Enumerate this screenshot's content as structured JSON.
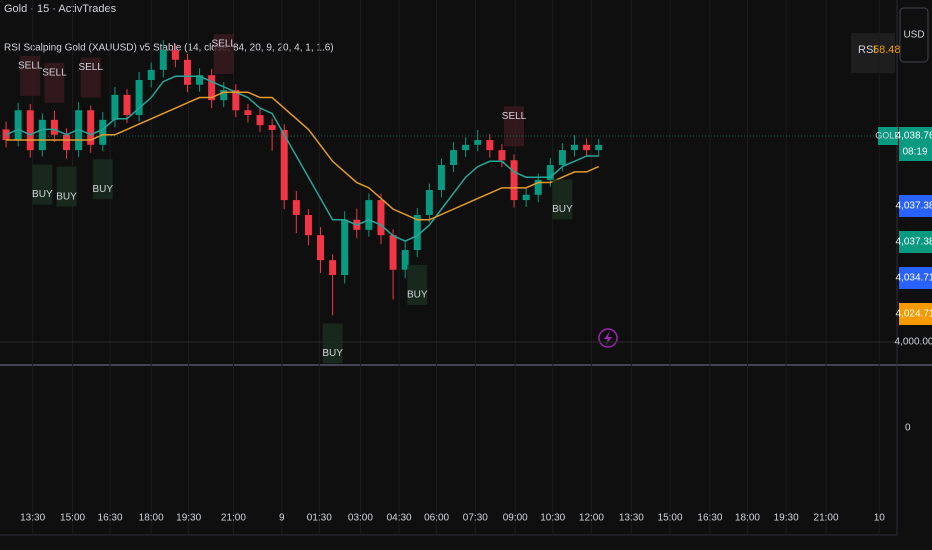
{
  "chart_data": {
    "type": "candlestick",
    "title": "Gold · 15 · ActivTrades",
    "subtitle": "RSI Scalping Gold (XAUUSD) v5 Stable (14, close, 84, 20, 9, 20, 4, 1, 1.6)",
    "up_color": "#089981",
    "down_color": "#f23645",
    "x": [
      0,
      1,
      2,
      3,
      4,
      5,
      6,
      7,
      8,
      9,
      10,
      11,
      12,
      13,
      14,
      15,
      16,
      17,
      18,
      19,
      20,
      21,
      22,
      23,
      24,
      25,
      26,
      27,
      28,
      29,
      30,
      31,
      32,
      33,
      34,
      35,
      36,
      37,
      38,
      39,
      40,
      41,
      42,
      43,
      44,
      45,
      46,
      47,
      48,
      49
    ],
    "open": [
      4040.0,
      4038.0,
      4043.6,
      4036.1,
      4041.8,
      4039.0,
      4036.1,
      4043.6,
      4037.1,
      4041.8,
      4046.5,
      4042.7,
      4049.3,
      4051.2,
      4054.9,
      4053.1,
      4048.4,
      4050.2,
      4045.5,
      4047.4,
      4043.6,
      4042.7,
      4040.8,
      4039.9,
      4026.7,
      4023.9,
      4020.1,
      4015.4,
      4012.6,
      4023.0,
      4021.1,
      4026.7,
      4020.1,
      4013.6,
      4017.3,
      4023.9,
      4028.6,
      4033.3,
      4036.1,
      4037.1,
      4038.0,
      4036.1,
      4034.2,
      4026.7,
      4027.7,
      4030.5,
      4033.3,
      4036.1,
      4037.1,
      4036.1
    ],
    "high": [
      4041.5,
      4045.0,
      4044.8,
      4043.0,
      4043.5,
      4040.2,
      4045.1,
      4044.5,
      4043.3,
      4048.0,
      4047.6,
      4050.8,
      4052.6,
      4056.8,
      4056.0,
      4054.2,
      4051.5,
      4051.4,
      4048.9,
      4048.5,
      4044.8,
      4043.9,
      4042.0,
      4041.0,
      4028.4,
      4025.0,
      4021.6,
      4016.5,
      4024.6,
      4025.1,
      4028.0,
      4027.9,
      4021.2,
      4018.9,
      4025.2,
      4029.8,
      4034.5,
      4037.6,
      4038.5,
      4039.9,
      4039.1,
      4037.2,
      4035.3,
      4029.0,
      4031.7,
      4034.6,
      4037.4,
      4038.9,
      4038.3,
      4038.2
    ],
    "low": [
      4036.6,
      4036.8,
      4034.7,
      4034.9,
      4037.6,
      4034.5,
      4034.8,
      4035.6,
      4035.9,
      4040.4,
      4041.2,
      4041.5,
      4047.9,
      4049.8,
      4051.7,
      4047.0,
      4047.1,
      4044.0,
      4044.2,
      4042.3,
      4041.3,
      4039.5,
      4036.0,
      4025.0,
      4020.5,
      4018.2,
      4013.0,
      4005.0,
      4011.0,
      4019.5,
      4019.8,
      4018.4,
      4008.0,
      4012.0,
      4016.0,
      4022.5,
      4027.2,
      4032.0,
      4034.8,
      4035.9,
      4034.7,
      4032.9,
      4025.3,
      4025.4,
      4026.3,
      4029.2,
      4032.1,
      4034.9,
      4034.8,
      4035.0
    ],
    "close": [
      4038.0,
      4043.6,
      4036.1,
      4041.8,
      4039.0,
      4036.1,
      4043.6,
      4037.1,
      4041.8,
      4046.5,
      4042.7,
      4049.3,
      4051.2,
      4054.9,
      4053.1,
      4048.4,
      4050.2,
      4045.5,
      4047.4,
      4043.6,
      4042.7,
      4040.8,
      4039.9,
      4026.7,
      4023.9,
      4020.1,
      4015.4,
      4012.6,
      4023.0,
      4021.1,
      4026.7,
      4020.1,
      4013.6,
      4017.3,
      4023.9,
      4028.6,
      4033.3,
      4036.1,
      4037.1,
      4038.0,
      4036.1,
      4034.2,
      4026.7,
      4027.7,
      4030.5,
      4033.3,
      4036.1,
      4037.1,
      4036.1,
      4037.1
    ],
    "overlays": [
      {
        "color": "#26a69a",
        "values": [
          4039,
          4040,
          4039,
          4040,
          4040,
          4039,
          4040,
          4039,
          4040,
          4042,
          4042,
          4044,
          4046,
          4049,
          4050,
          4050,
          4050,
          4049,
          4048,
          4047,
          4046,
          4044,
          4043,
          4039,
          4035,
          4031,
          4027,
          4023,
          4023,
          4022,
          4023,
          4022,
          4020,
          4019,
          4020,
          4022,
          4025,
          4028,
          4031,
          4033,
          4034,
          4034,
          4032,
          4031,
          4031,
          4031,
          4033,
          4034,
          4035,
          4035
        ]
      },
      {
        "color": "#e39b2c",
        "values": [
          4038,
          4038,
          4038,
          4038,
          4038,
          4038,
          4038,
          4038,
          4039,
          4039,
          4040,
          4041,
          4042,
          4043,
          4044,
          4045,
          4046,
          4046,
          4047,
          4047,
          4047,
          4046,
          4046,
          4044,
          4042,
          4040,
          4037,
          4034,
          4032,
          4030,
          4029,
          4027,
          4025,
          4024,
          4023,
          4023,
          4024,
          4025,
          4026,
          4027,
          4028,
          4029,
          4029,
          4029,
          4030,
          4030,
          4031,
          4032,
          4032,
          4033
        ]
      }
    ],
    "signals": [
      {
        "label": "SELL",
        "x": 2
      },
      {
        "label": "SELL",
        "x": 4
      },
      {
        "label": "SELL",
        "x": 7
      },
      {
        "label": "SELL",
        "x": 18
      },
      {
        "label": "SELL",
        "x": 42
      },
      {
        "label": "BUY",
        "x": 3
      },
      {
        "label": "BUY",
        "x": 5
      },
      {
        "label": "BUY",
        "x": 8
      },
      {
        "label": "BUY",
        "x": 27
      },
      {
        "label": "BUY",
        "x": 34
      },
      {
        "label": "BUY",
        "x": 46
      }
    ],
    "xlim": [
      -0.5,
      73.5
    ],
    "xticks": [
      {
        "value": 2.2,
        "label": "13:30"
      },
      {
        "value": 5.5,
        "label": "15:00"
      },
      {
        "value": 8.6,
        "label": "16:30"
      },
      {
        "value": 12.0,
        "label": "18:00"
      },
      {
        "value": 15.1,
        "label": "19:30"
      },
      {
        "value": 18.8,
        "label": "21:00"
      },
      {
        "value": 22.8,
        "label": "9"
      },
      {
        "value": 25.9,
        "label": "01:30"
      },
      {
        "value": 29.3,
        "label": "03:00"
      },
      {
        "value": 32.5,
        "label": "04:30"
      },
      {
        "value": 35.6,
        "label": "06:00"
      },
      {
        "value": 38.8,
        "label": "07:30"
      },
      {
        "value": 42.1,
        "label": "09:00"
      },
      {
        "value": 45.2,
        "label": "10:30"
      },
      {
        "value": 48.4,
        "label": "12:00"
      },
      {
        "value": 51.7,
        "label": "13:30"
      },
      {
        "value": 54.9,
        "label": "15:00"
      },
      {
        "value": 58.2,
        "label": "16:30"
      },
      {
        "value": 61.3,
        "label": "18:00"
      },
      {
        "value": 64.5,
        "label": "19:30"
      },
      {
        "value": 67.8,
        "label": "21:00"
      },
      {
        "value": 72.2,
        "label": "10"
      }
    ],
    "ylim": [
      3995.67,
      4064.35
    ],
    "yticks": [
      {
        "value": 4000,
        "label": "4,000.00"
      }
    ],
    "last_price": {
      "value": 4038.76,
      "label": "4,038.76",
      "symbol": "GOLD",
      "countdown": "08:19",
      "color": "#089981"
    },
    "indicator_tags": [
      {
        "label": "4,037.38",
        "color": "#2962ff"
      },
      {
        "label": "4,037.38",
        "color": "#089981"
      },
      {
        "label": "4,034.71",
        "color": "#2962ff"
      },
      {
        "label": "4,024.71",
        "color": "#f59a00"
      }
    ],
    "lower_pane_label": "0",
    "rsi": {
      "label": "RSI",
      "value": 58.48
    },
    "currency": "USD"
  }
}
